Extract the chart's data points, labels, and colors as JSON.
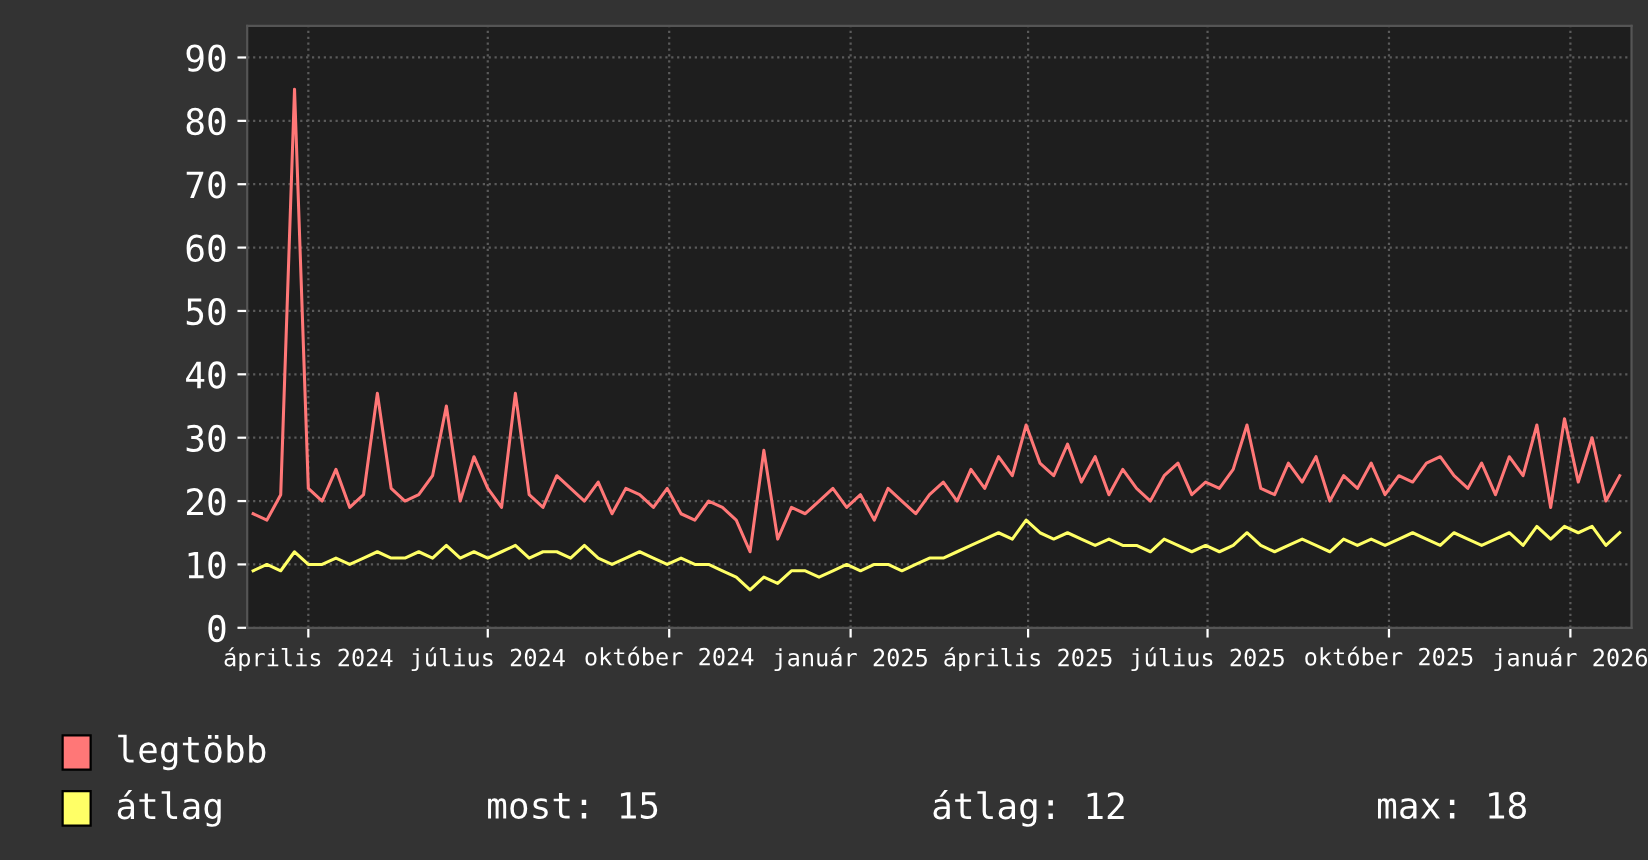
{
  "chart_data": {
    "type": "line",
    "ylim": [
      0,
      95
    ],
    "yticks": [
      0,
      10,
      20,
      30,
      40,
      50,
      60,
      70,
      80,
      90
    ],
    "xlim": [
      "2024-03-01",
      "2026-02-01"
    ],
    "xticks": [
      {
        "value": "2024-04-01",
        "label": "április 2024"
      },
      {
        "value": "2024-07-01",
        "label": "július 2024"
      },
      {
        "value": "2024-10-01",
        "label": "október 2024"
      },
      {
        "value": "2025-01-01",
        "label": "január 2025"
      },
      {
        "value": "2025-04-01",
        "label": "április 2025"
      },
      {
        "value": "2025-07-01",
        "label": "július 2025"
      },
      {
        "value": "2025-10-01",
        "label": "október 2025"
      },
      {
        "value": "2026-01-01",
        "label": "január 2026"
      }
    ],
    "grid": true,
    "legend": "bottom",
    "marker": "none",
    "line_style": "solid",
    "annotations": [
      "most: 15",
      "átlag: 12",
      "max: 18"
    ],
    "x": [
      "2024-03-04",
      "2024-03-11",
      "2024-03-18",
      "2024-03-25",
      "2024-04-01",
      "2024-04-08",
      "2024-04-15",
      "2024-04-22",
      "2024-04-29",
      "2024-05-06",
      "2024-05-13",
      "2024-05-20",
      "2024-05-27",
      "2024-06-03",
      "2024-06-10",
      "2024-06-17",
      "2024-06-24",
      "2024-07-01",
      "2024-07-08",
      "2024-07-15",
      "2024-07-22",
      "2024-07-29",
      "2024-08-05",
      "2024-08-12",
      "2024-08-19",
      "2024-08-26",
      "2024-09-02",
      "2024-09-09",
      "2024-09-16",
      "2024-09-23",
      "2024-09-30",
      "2024-10-07",
      "2024-10-14",
      "2024-10-21",
      "2024-10-28",
      "2024-11-04",
      "2024-11-11",
      "2024-11-18",
      "2024-11-25",
      "2024-12-02",
      "2024-12-09",
      "2024-12-16",
      "2024-12-23",
      "2024-12-30",
      "2025-01-06",
      "2025-01-13",
      "2025-01-20",
      "2025-01-27",
      "2025-02-03",
      "2025-02-10",
      "2025-02-17",
      "2025-02-24",
      "2025-03-03",
      "2025-03-10",
      "2025-03-17",
      "2025-03-24",
      "2025-03-31",
      "2025-04-07",
      "2025-04-14",
      "2025-04-21",
      "2025-04-28",
      "2025-05-05",
      "2025-05-12",
      "2025-05-19",
      "2025-05-26",
      "2025-06-02",
      "2025-06-09",
      "2025-06-16",
      "2025-06-23",
      "2025-06-30",
      "2025-07-07",
      "2025-07-14",
      "2025-07-21",
      "2025-07-28",
      "2025-08-04",
      "2025-08-11",
      "2025-08-18",
      "2025-08-25",
      "2025-09-01",
      "2025-09-08",
      "2025-09-15",
      "2025-09-22",
      "2025-09-29",
      "2025-10-06",
      "2025-10-13",
      "2025-10-20",
      "2025-10-27",
      "2025-11-03",
      "2025-11-10",
      "2025-11-17",
      "2025-11-24",
      "2025-12-01",
      "2025-12-08",
      "2025-12-15",
      "2025-12-22",
      "2025-12-29",
      "2026-01-05",
      "2026-01-12",
      "2026-01-19",
      "2026-01-26"
    ],
    "series": [
      {
        "name": "legtöbb",
        "color": "#ff7777",
        "values": [
          18,
          17,
          21,
          85,
          22,
          20,
          25,
          19,
          21,
          37,
          22,
          20,
          21,
          24,
          35,
          20,
          27,
          22,
          19,
          37,
          21,
          19,
          24,
          22,
          20,
          23,
          18,
          22,
          21,
          19,
          22,
          18,
          17,
          20,
          19,
          17,
          12,
          28,
          14,
          19,
          18,
          20,
          22,
          19,
          21,
          17,
          22,
          20,
          18,
          21,
          23,
          20,
          25,
          22,
          27,
          24,
          32,
          26,
          24,
          29,
          23,
          27,
          21,
          25,
          22,
          20,
          24,
          26,
          21,
          23,
          22,
          25,
          32,
          22,
          21,
          26,
          23,
          27,
          20,
          24,
          22,
          26,
          21,
          24,
          23,
          26,
          27,
          24,
          22,
          26,
          21,
          27,
          24,
          32,
          19,
          33,
          23,
          30,
          20,
          24
        ]
      },
      {
        "name": "átlag",
        "color": "#ffff66",
        "values": [
          9,
          10,
          9,
          12,
          10,
          10,
          11,
          10,
          11,
          12,
          11,
          11,
          12,
          11,
          13,
          11,
          12,
          11,
          12,
          13,
          11,
          12,
          12,
          11,
          13,
          11,
          10,
          11,
          12,
          11,
          10,
          11,
          10,
          10,
          9,
          8,
          6,
          8,
          7,
          9,
          9,
          8,
          9,
          10,
          9,
          10,
          10,
          9,
          10,
          11,
          11,
          12,
          13,
          14,
          15,
          14,
          17,
          15,
          14,
          15,
          14,
          13,
          14,
          13,
          13,
          12,
          14,
          13,
          12,
          13,
          12,
          13,
          15,
          13,
          12,
          13,
          14,
          13,
          12,
          14,
          13,
          14,
          13,
          14,
          15,
          14,
          13,
          15,
          14,
          13,
          14,
          15,
          13,
          16,
          14,
          16,
          15,
          16,
          13,
          15
        ]
      }
    ]
  }
}
